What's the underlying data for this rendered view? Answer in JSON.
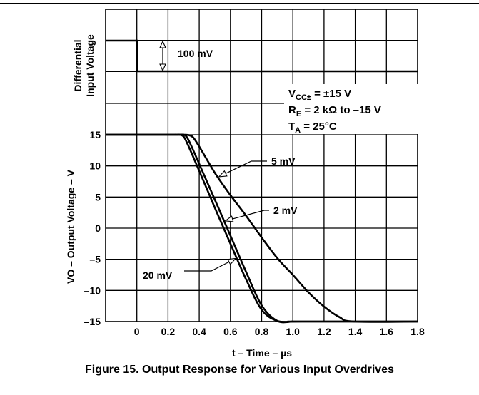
{
  "caption": "Figure 15. Output Response for Various Input Overdrives",
  "chart_data": {
    "type": "line",
    "xlabel": "t – Time – µs",
    "ylabel": "VO – Output Voltage – V",
    "xlim": [
      -0.2,
      1.8
    ],
    "ylim": [
      -15,
      15
    ],
    "x_ticks": [
      "0",
      "0.2",
      "0.4",
      "0.6",
      "0.8",
      "1.0",
      "1.2",
      "1.4",
      "1.6",
      "1.8"
    ],
    "x_tick_values": [
      0,
      0.2,
      0.4,
      0.6,
      0.8,
      1.0,
      1.2,
      1.4,
      1.6,
      1.8
    ],
    "y_ticks": [
      "15",
      "10",
      "5",
      "0",
      "–5",
      "–10",
      "–15"
    ],
    "y_tick_values": [
      15,
      10,
      5,
      0,
      -5,
      -10,
      -15
    ],
    "grid": true,
    "input_panel": {
      "ylabel_line1": "Differential",
      "ylabel_line2": "Input Voltage",
      "step_label": "100 mV",
      "step_time": 0.0
    },
    "conditions": {
      "vcc": {
        "main": "V",
        "sub": "CC±",
        "rest": " = ±15 V"
      },
      "re": {
        "main": "R",
        "sub": "E",
        "rest": " = 2 kΩ to –15 V"
      },
      "ta": {
        "main": "T",
        "sub": "A",
        "rest": " = 25°C"
      }
    },
    "series": [
      {
        "name": "20 mV",
        "x": [
          -0.2,
          0.2,
          0.25,
          0.29,
          0.32,
          0.4,
          0.5,
          0.6,
          0.7,
          0.8,
          0.9,
          1.0,
          1.03,
          1.8
        ],
        "y": [
          15,
          15,
          15,
          14.9,
          13.8,
          9.2,
          3.3,
          -2.5,
          -8.2,
          -13.1,
          -14.9,
          -15,
          -15,
          -15
        ]
      },
      {
        "name": "2 mV",
        "x": [
          -0.2,
          0.22,
          0.27,
          0.31,
          0.34,
          0.4,
          0.5,
          0.6,
          0.7,
          0.8,
          0.9,
          1.0,
          1.06,
          1.8
        ],
        "y": [
          15,
          15,
          15,
          14.9,
          13.7,
          10.3,
          4.6,
          -1.2,
          -7.0,
          -12.4,
          -14.9,
          -15,
          -15,
          -15
        ]
      },
      {
        "name": "5 mV",
        "x": [
          -0.2,
          0.25,
          0.3,
          0.33,
          0.36,
          0.4,
          0.5,
          0.6,
          0.7,
          0.8,
          0.9,
          1.0,
          1.1,
          1.2,
          1.3,
          1.39,
          1.8
        ],
        "y": [
          15,
          15,
          15,
          14.95,
          14.6,
          13.1,
          8.9,
          5.3,
          2.0,
          -1.5,
          -4.8,
          -7.5,
          -10.3,
          -12.6,
          -14.3,
          -15,
          -15
        ]
      }
    ],
    "annotations": [
      {
        "text": "5 mV",
        "series": "5 mV"
      },
      {
        "text": "2 mV",
        "series": "2 mV"
      },
      {
        "text": "20 mV",
        "series": "20 mV"
      }
    ]
  }
}
